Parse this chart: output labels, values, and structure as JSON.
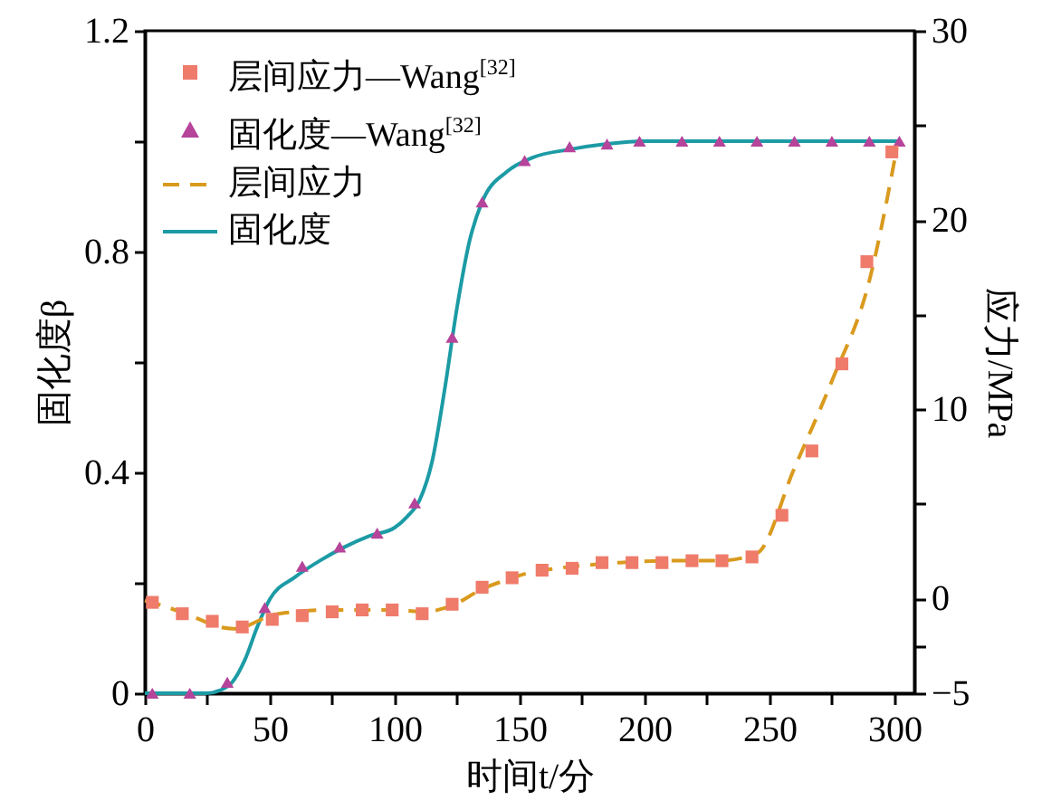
{
  "chart_data": {
    "type": "line",
    "xlabel": "时间t/分",
    "ylabel": "固化度β",
    "y2label": "应力/MPa",
    "xlim": [
      0,
      308
    ],
    "xticks": [
      0,
      {
        "value": 25,
        "label": null
      },
      50,
      {
        "value": 75,
        "label": null
      },
      100,
      {
        "value": 125,
        "label": null
      },
      150,
      {
        "value": 175,
        "label": null
      },
      200,
      {
        "value": 225,
        "label": null
      },
      250,
      {
        "value": 275,
        "label": null
      },
      300
    ],
    "ylim": [
      0,
      1.2
    ],
    "yticks": [
      0,
      {
        "value": 0.2,
        "label": null
      },
      0.4,
      {
        "value": 0.6,
        "label": null
      },
      0.8,
      {
        "value": 1.0,
        "label": null
      },
      1.2
    ],
    "y2lim": [
      -5,
      30
    ],
    "y2ticks": [
      {
        "value": -5,
        "label": "−5"
      },
      {
        "value": -2.5,
        "label": null
      },
      0,
      {
        "value": 5,
        "label": null
      },
      10,
      {
        "value": 15,
        "label": null
      },
      20,
      {
        "value": 25,
        "label": null
      },
      30
    ],
    "grid": false,
    "legend": "top left",
    "series": [
      {
        "name": "层间应力—Wang$^{[32]}$",
        "type": "scatter",
        "marker": "square",
        "axis": "y2",
        "color": "#ef7b6b",
        "x": [
          3,
          15,
          27,
          39,
          51,
          63,
          75,
          87,
          99,
          111,
          123,
          135,
          147,
          159,
          171,
          183,
          195,
          207,
          219,
          231,
          243,
          255,
          267,
          279,
          289,
          299
        ],
        "values": [
          -0.2,
          -0.8,
          -1.2,
          -1.5,
          -1.1,
          -0.9,
          -0.7,
          -0.6,
          -0.6,
          -0.8,
          -0.3,
          0.6,
          1.1,
          1.5,
          1.6,
          1.9,
          1.9,
          1.9,
          2.0,
          2.0,
          2.2,
          4.4,
          7.8,
          12.4,
          17.8,
          23.6
        ]
      },
      {
        "name": "固化度—Wang$^{[32]}$",
        "type": "scatter",
        "marker": "triangle",
        "color": "#b5449a",
        "x": [
          3,
          18,
          33,
          48,
          63,
          78,
          93,
          108,
          123,
          135,
          152,
          170,
          185,
          198,
          215,
          230,
          245,
          260,
          275,
          290,
          302
        ],
        "values": [
          0,
          0,
          0.02,
          0.155,
          0.23,
          0.265,
          0.29,
          0.345,
          0.645,
          0.89,
          0.965,
          0.99,
          0.995,
          1,
          1,
          1,
          1,
          1,
          1,
          1,
          1
        ]
      },
      {
        "name": "层间应力",
        "type": "line",
        "line_style": "dashed",
        "axis": "y2",
        "color": "#d99a1e",
        "x": [
          0,
          10,
          20,
          30,
          37,
          45,
          50,
          60,
          75,
          100,
          112,
          120,
          124,
          135,
          145,
          155,
          165,
          180,
          190,
          210,
          230,
          245,
          260,
          275,
          290,
          301
        ],
        "values": [
          -0.1,
          -0.5,
          -1.0,
          -1.5,
          -1.6,
          -1.2,
          -0.9,
          -0.7,
          -0.6,
          -0.6,
          -0.7,
          -0.5,
          -0.3,
          0.5,
          1.0,
          1.4,
          1.6,
          1.8,
          1.9,
          2.0,
          2.0,
          2.4,
          6.9,
          11.5,
          16.8,
          23.8
        ]
      },
      {
        "name": "固化度",
        "type": "line",
        "line_style": "solid",
        "color": "#1c9ba5",
        "x": [
          0,
          25,
          30,
          35,
          40,
          45,
          50,
          60,
          70,
          80,
          90,
          100,
          105,
          110,
          115,
          120,
          125,
          130,
          135,
          145,
          155,
          170,
          185,
          200,
          250,
          302
        ],
        "values": [
          0,
          0,
          0.005,
          0.02,
          0.06,
          0.12,
          0.17,
          0.21,
          0.24,
          0.265,
          0.285,
          0.3,
          0.32,
          0.35,
          0.42,
          0.55,
          0.7,
          0.82,
          0.89,
          0.945,
          0.97,
          0.985,
          0.995,
          1,
          1,
          1
        ]
      }
    ]
  }
}
